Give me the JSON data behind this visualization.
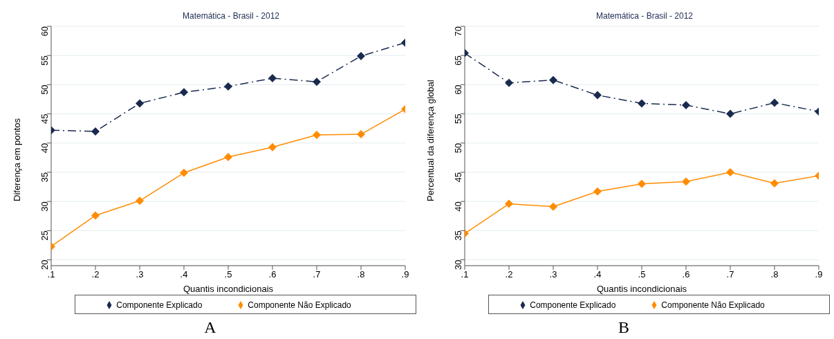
{
  "chart_data": [
    {
      "type": "line",
      "title": "Matemática - Brasil - 2012",
      "xlabel": "Quantis incondicionais",
      "ylabel": "Diferença em pontos",
      "x": [
        0.1,
        0.2,
        0.3,
        0.4,
        0.5,
        0.6,
        0.7,
        0.8,
        0.9
      ],
      "xlim": [
        0.1,
        0.9
      ],
      "xticks": [
        {
          "value": 0.1,
          "label": ".1"
        },
        {
          "value": 0.2,
          "label": ".2"
        },
        {
          "value": 0.3,
          "label": ".3"
        },
        {
          "value": 0.4,
          "label": ".4"
        },
        {
          "value": 0.5,
          "label": ".5"
        },
        {
          "value": 0.6,
          "label": ".6"
        },
        {
          "value": 0.7,
          "label": ".7"
        },
        {
          "value": 0.8,
          "label": ".8"
        },
        {
          "value": 0.9,
          "label": ".9"
        }
      ],
      "ylim": [
        19,
        60
      ],
      "yticks": [
        20,
        25,
        30,
        35,
        40,
        45,
        50,
        55,
        60
      ],
      "grid": "y",
      "legend": "bottom",
      "marker": "diamond",
      "annotations": [
        "A"
      ],
      "series": [
        {
          "name": "Componente Explicado",
          "color": "#1a2a4f",
          "line_style": "dashed",
          "values": [
            42.2,
            42.0,
            46.8,
            48.7,
            49.7,
            51.1,
            50.5,
            54.9,
            57.2
          ]
        },
        {
          "name": "Componente Não Explicado",
          "color": "#ff8c00",
          "line_style": "solid",
          "values": [
            22.3,
            27.6,
            30.1,
            34.9,
            37.6,
            39.3,
            41.4,
            41.5,
            45.8
          ]
        }
      ]
    },
    {
      "type": "line",
      "title": "Matemática - Brasil - 2012",
      "xlabel": "Quantis incondicionais",
      "ylabel": "Percentual da diferença global",
      "x": [
        0.1,
        0.2,
        0.3,
        0.4,
        0.5,
        0.6,
        0.7,
        0.8,
        0.9
      ],
      "xlim": [
        0.1,
        0.9
      ],
      "xticks": [
        {
          "value": 0.1,
          "label": ".1"
        },
        {
          "value": 0.2,
          "label": ".2"
        },
        {
          "value": 0.3,
          "label": ".3"
        },
        {
          "value": 0.4,
          "label": ".4"
        },
        {
          "value": 0.5,
          "label": ".5"
        },
        {
          "value": 0.6,
          "label": ".6"
        },
        {
          "value": 0.7,
          "label": ".7"
        },
        {
          "value": 0.8,
          "label": ".8"
        },
        {
          "value": 0.9,
          "label": ".9"
        }
      ],
      "ylim": [
        29,
        70
      ],
      "yticks": [
        30,
        35,
        40,
        45,
        50,
        55,
        60,
        65,
        70
      ],
      "grid": "y",
      "legend": "bottom",
      "marker": "diamond",
      "annotations": [
        "B"
      ],
      "series": [
        {
          "name": "Componente Explicado",
          "color": "#1a2a4f",
          "line_style": "dashed",
          "values": [
            65.4,
            60.3,
            60.8,
            58.2,
            56.8,
            56.5,
            55.0,
            56.9,
            55.4
          ]
        },
        {
          "name": "Componente Não Explicado",
          "color": "#ff8c00",
          "line_style": "solid",
          "values": [
            34.5,
            39.6,
            39.1,
            41.7,
            43.0,
            43.4,
            45.0,
            43.1,
            44.4
          ]
        }
      ]
    }
  ]
}
